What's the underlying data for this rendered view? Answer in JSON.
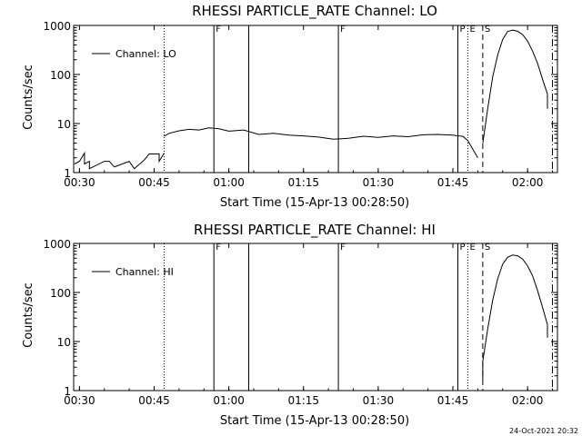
{
  "footer_timestamp": "24-Oct-2021 20:32",
  "chart_data": [
    {
      "type": "line",
      "title": "RHESSI PARTICLE_RATE Channel: LO",
      "xlabel": "Start Time (15-Apr-13 00:28:50)",
      "ylabel": "Counts/sec",
      "y_scale": "log",
      "ylim": [
        1,
        1000
      ],
      "xlim": [
        "00:28:50",
        "02:06:00"
      ],
      "x_tick_labels": [
        "00:30",
        "00:45",
        "01:00",
        "01:15",
        "01:30",
        "01:45",
        "02:00"
      ],
      "y_tick_labels": [
        "1",
        "10",
        "100",
        "1000"
      ],
      "legend": {
        "position": "top-left",
        "label": "Channel: LO"
      },
      "markers": [
        {
          "time": "00:47",
          "style": "dotted",
          "label": ""
        },
        {
          "time": "00:57",
          "style": "solid",
          "label": "F"
        },
        {
          "time": "01:04",
          "style": "solid",
          "label": ""
        },
        {
          "time": "01:22",
          "style": "solid",
          "label": "F"
        },
        {
          "time": "01:46",
          "style": "solid",
          "label": "P"
        },
        {
          "time": "01:48",
          "style": "dotted",
          "label": "E"
        },
        {
          "time": "01:51",
          "style": "dashed",
          "label": "S"
        },
        {
          "time": "02:05",
          "style": "dashdot",
          "label": ""
        }
      ],
      "series": [
        {
          "segments": [
            {
              "x": [
                "00:29",
                "00:30",
                "00:31",
                "00:31",
                "00:32",
                "00:32",
                "00:35",
                "00:36",
                "00:37",
                "00:40",
                "00:41",
                "00:43",
                "00:44",
                "00:45",
                "00:46",
                "00:46",
                "00:47"
              ],
              "y": [
                1.5,
                1.7,
                2.5,
                1.5,
                1.7,
                1.2,
                1.7,
                1.7,
                1.3,
                1.7,
                1.2,
                1.8,
                2.4,
                2.4,
                2.4,
                1.7,
                2.5
              ]
            },
            {
              "x": [
                "00:47",
                "00:48",
                "00:50",
                "00:52",
                "00:54",
                "00:56",
                "00:58",
                "01:00",
                "01:03",
                "01:06",
                "01:09",
                "01:12",
                "01:15",
                "01:18",
                "01:21",
                "01:24",
                "01:27",
                "01:30",
                "01:33",
                "01:36",
                "01:39",
                "01:42",
                "01:45",
                "01:46",
                "01:47",
                "01:48",
                "01:49",
                "01:50"
              ],
              "y": [
                5.5,
                6.3,
                7.1,
                7.6,
                7.4,
                8.2,
                7.8,
                7.0,
                7.4,
                6.0,
                6.3,
                5.8,
                5.6,
                5.3,
                4.8,
                5.0,
                5.5,
                5.2,
                5.6,
                5.4,
                5.9,
                6.0,
                5.8,
                5.6,
                5.5,
                4.5,
                3.0,
                2.0
              ]
            },
            {
              "x": [
                "01:51",
                "01:52",
                "01:53",
                "01:54",
                "01:55",
                "01:56",
                "01:57",
                "01:58",
                "01:59",
                "02:00",
                "02:01",
                "02:02",
                "02:03",
                "02:04",
                "02:04"
              ],
              "y": [
                4,
                20,
                90,
                250,
                520,
                750,
                800,
                760,
                650,
                480,
                300,
                170,
                80,
                40,
                20
              ]
            }
          ]
        }
      ]
    },
    {
      "type": "line",
      "title": "RHESSI PARTICLE_RATE Channel: HI",
      "xlabel": "Start Time (15-Apr-13 00:28:50)",
      "ylabel": "Counts/sec",
      "y_scale": "log",
      "ylim": [
        1,
        1000
      ],
      "xlim": [
        "00:28:50",
        "02:06:00"
      ],
      "x_tick_labels": [
        "00:30",
        "00:45",
        "01:00",
        "01:15",
        "01:30",
        "01:45",
        "02:00"
      ],
      "y_tick_labels": [
        "1",
        "10",
        "100",
        "1000"
      ],
      "legend": {
        "position": "top-left",
        "label": "Channel: HI"
      },
      "markers": [
        {
          "time": "00:47",
          "style": "dotted",
          "label": ""
        },
        {
          "time": "00:57",
          "style": "solid",
          "label": "F"
        },
        {
          "time": "01:04",
          "style": "solid",
          "label": ""
        },
        {
          "time": "01:22",
          "style": "solid",
          "label": "F"
        },
        {
          "time": "01:46",
          "style": "solid",
          "label": "P"
        },
        {
          "time": "01:48",
          "style": "dotted",
          "label": "E"
        },
        {
          "time": "01:51",
          "style": "dashed",
          "label": "S"
        },
        {
          "time": "02:05",
          "style": "dashdot",
          "label": ""
        }
      ],
      "series": [
        {
          "segments": [
            {
              "x": [
                "01:51",
                "01:51",
                "01:52",
                "01:53",
                "01:54",
                "01:55",
                "01:56",
                "01:57",
                "01:58",
                "01:59",
                "02:00",
                "02:01",
                "02:02",
                "02:03",
                "02:04",
                "02:04"
              ],
              "y": [
                1.6,
                4,
                18,
                70,
                190,
                380,
                520,
                580,
                560,
                480,
                350,
                220,
                110,
                50,
                22,
                12
              ]
            }
          ]
        }
      ]
    }
  ]
}
